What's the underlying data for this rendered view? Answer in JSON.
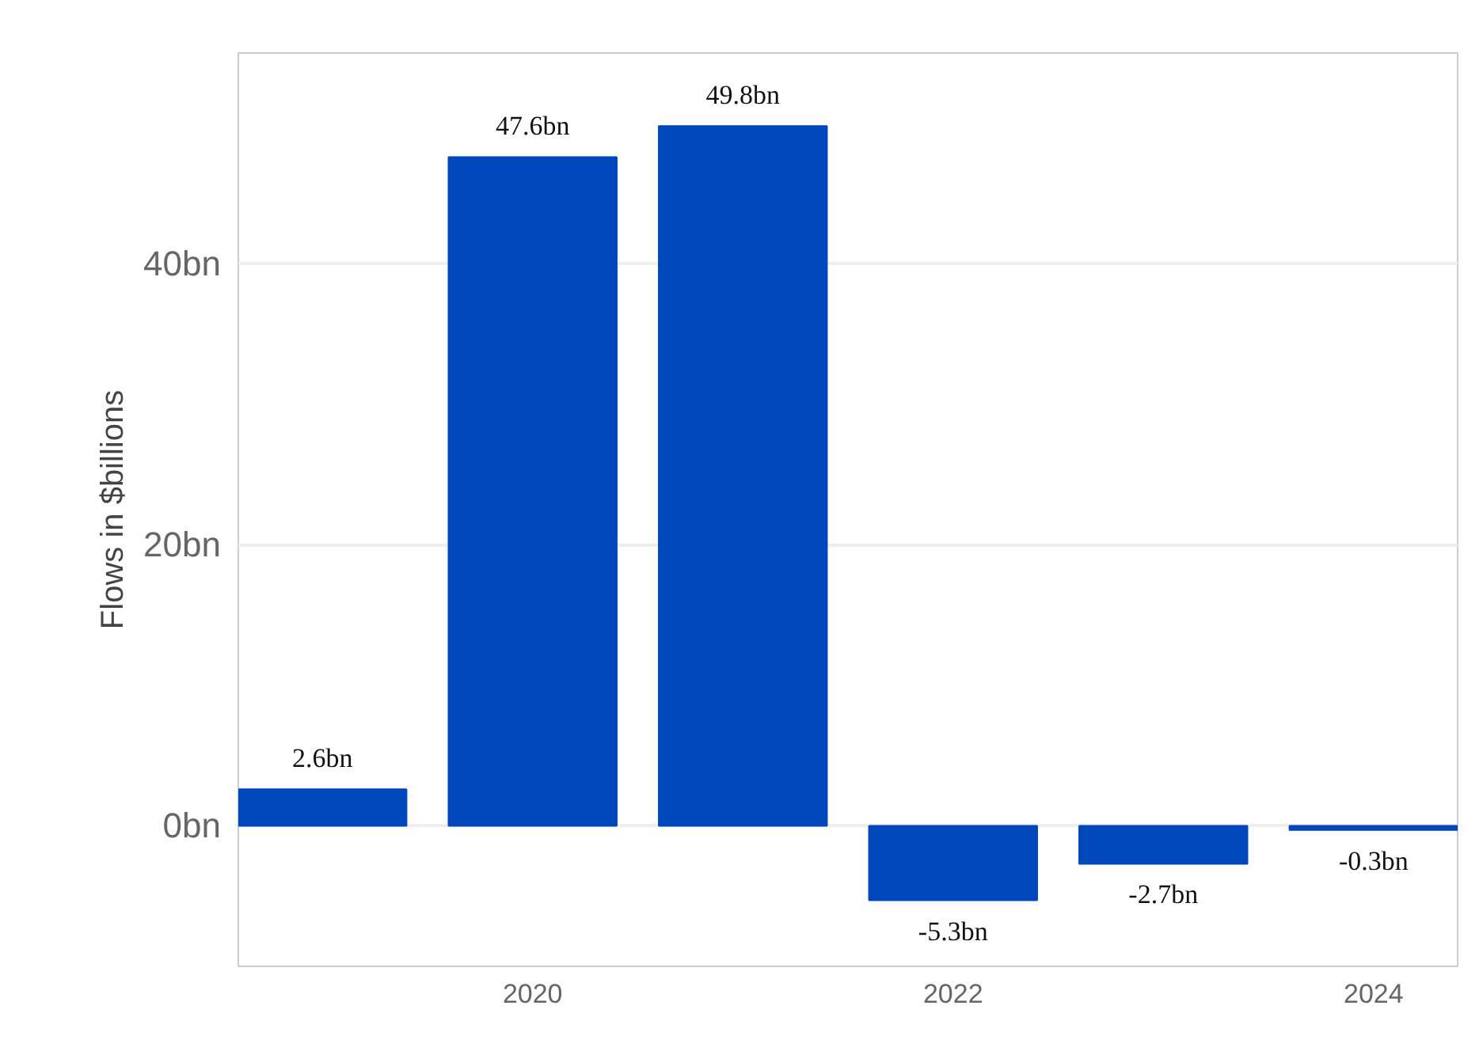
{
  "chart_data": {
    "type": "bar",
    "x": [
      2019,
      2020,
      2021,
      2022,
      2023,
      2024
    ],
    "values": [
      2.6,
      47.6,
      49.8,
      -5.3,
      -2.7,
      -0.3
    ],
    "value_labels": [
      "2.6bn",
      "47.6bn",
      "49.8bn",
      "-5.3bn",
      "-2.7bn",
      "-0.3bn"
    ],
    "color": "#0047bb",
    "ylabel": "Flows in $billions",
    "xlim": [
      2018.6,
      2024.4
    ],
    "xticks": [
      2020,
      2022,
      2024
    ],
    "ylim": [
      -10,
      55
    ],
    "yticks": [
      {
        "value": 0,
        "label": "0bn"
      },
      {
        "value": 20,
        "label": "20bn"
      },
      {
        "value": 40,
        "label": "40bn"
      }
    ],
    "grid": "y"
  }
}
